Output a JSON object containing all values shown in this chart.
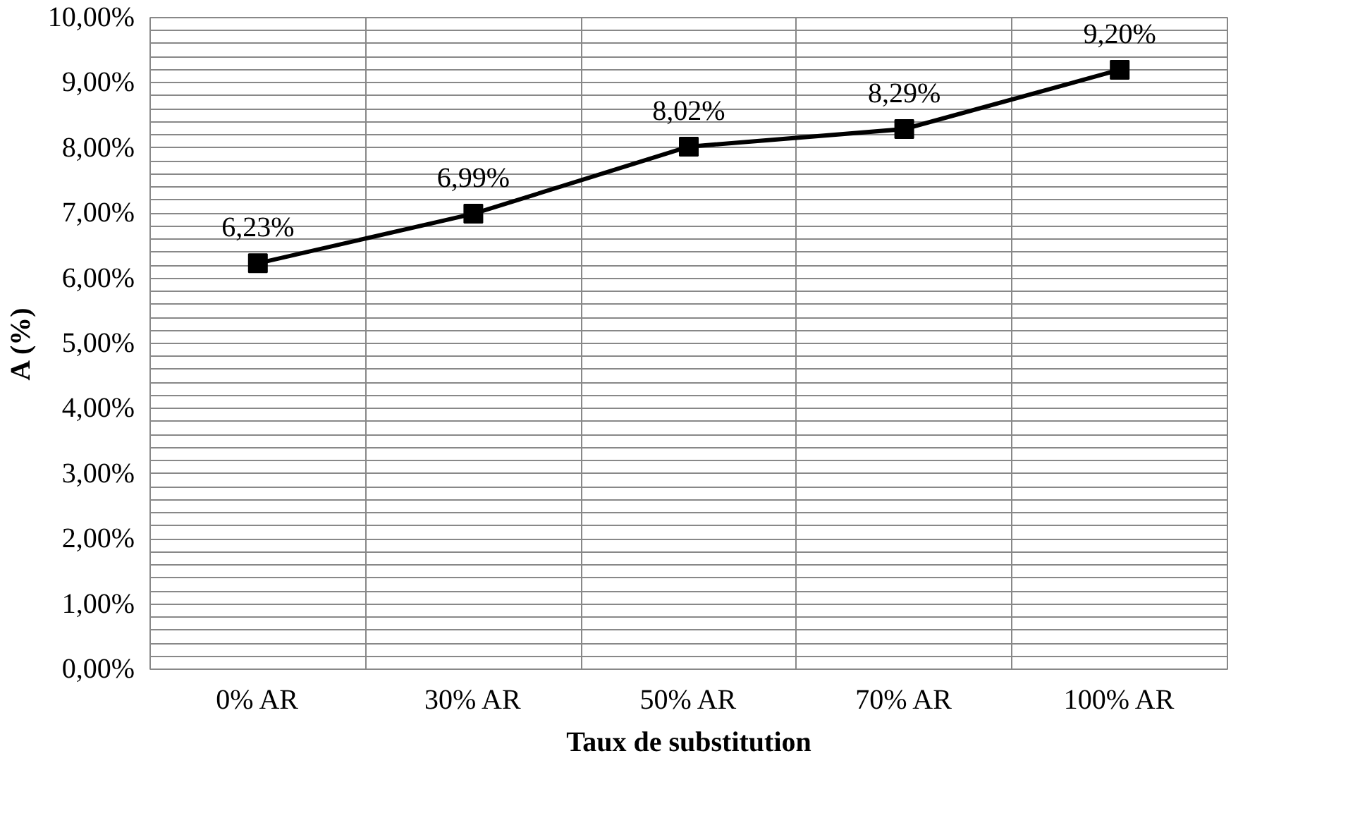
{
  "chart_data": {
    "type": "line",
    "xlabel": "Taux de substitution",
    "ylabel": "A (%)",
    "categories": [
      "0% AR",
      "30% AR",
      "50% AR",
      "70% AR",
      "100% AR"
    ],
    "series": [
      {
        "color": "#000000",
        "values": [
          6.23,
          6.99,
          8.02,
          8.29,
          9.2
        ],
        "value_labels": [
          "6,23%",
          "6,99%",
          "8,02%",
          "8,29%",
          "9,20%"
        ]
      }
    ],
    "ylim": [
      0,
      10
    ],
    "yticks": [
      {
        "value": 0,
        "label": "0,00%"
      },
      {
        "value": 1,
        "label": "1,00%"
      },
      {
        "value": 2,
        "label": "2,00%"
      },
      {
        "value": 3,
        "label": "3,00%"
      },
      {
        "value": 4,
        "label": "4,00%"
      },
      {
        "value": 5,
        "label": "5,00%"
      },
      {
        "value": 6,
        "label": "6,00%"
      },
      {
        "value": 7,
        "label": "7,00%"
      },
      {
        "value": 8,
        "label": "8,00%"
      },
      {
        "value": 9,
        "label": "9,00%"
      },
      {
        "value": 10,
        "label": "10,00%"
      }
    ],
    "grid": true,
    "marker": "square",
    "line_style": "solid"
  }
}
